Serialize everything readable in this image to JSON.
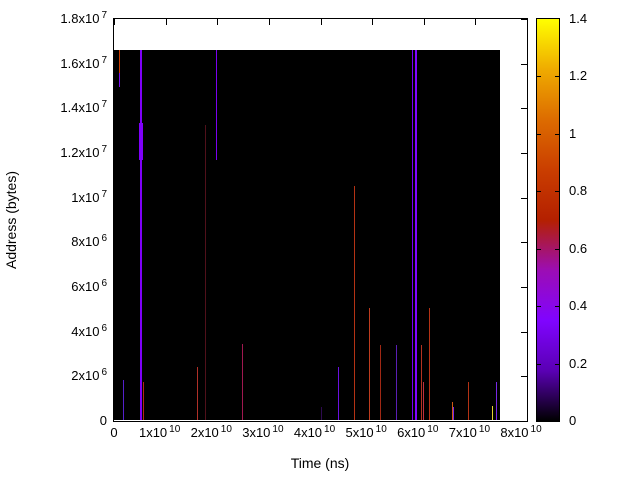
{
  "chart_data": {
    "type": "heatmap",
    "title": "",
    "xlabel": "Time (ns)",
    "ylabel": "Address (bytes)",
    "plot_bg": "#ffffff",
    "grid": false,
    "x_axis": {
      "min": 0,
      "max": 80000000000.0,
      "ticks": [
        {
          "value": 0,
          "mantissa": "0",
          "exp": ""
        },
        {
          "value": 10000000000.0,
          "mantissa": "1x10",
          "exp": "10"
        },
        {
          "value": 20000000000.0,
          "mantissa": "2x10",
          "exp": "10"
        },
        {
          "value": 30000000000.0,
          "mantissa": "3x10",
          "exp": "10"
        },
        {
          "value": 40000000000.0,
          "mantissa": "4x10",
          "exp": "10"
        },
        {
          "value": 50000000000.0,
          "mantissa": "5x10",
          "exp": "10"
        },
        {
          "value": 60000000000.0,
          "mantissa": "6x10",
          "exp": "10"
        },
        {
          "value": 70000000000.0,
          "mantissa": "7x10",
          "exp": "10"
        },
        {
          "value": 80000000000.0,
          "mantissa": "8x10",
          "exp": "10"
        }
      ]
    },
    "y_axis": {
      "min": 0,
      "max": 18000000.0,
      "ticks": [
        {
          "value": 0,
          "mantissa": "0",
          "exp": ""
        },
        {
          "value": 2000000.0,
          "mantissa": "2x10",
          "exp": "6"
        },
        {
          "value": 4000000.0,
          "mantissa": "4x10",
          "exp": "6"
        },
        {
          "value": 6000000.0,
          "mantissa": "6x10",
          "exp": "6"
        },
        {
          "value": 8000000.0,
          "mantissa": "8x10",
          "exp": "6"
        },
        {
          "value": 10000000.0,
          "mantissa": "1x10",
          "exp": "7"
        },
        {
          "value": 12000000.0,
          "mantissa": "1.2x10",
          "exp": "7"
        },
        {
          "value": 14000000.0,
          "mantissa": "1.4x10",
          "exp": "7"
        },
        {
          "value": 16000000.0,
          "mantissa": "1.6x10",
          "exp": "7"
        },
        {
          "value": 18000000.0,
          "mantissa": "1.8x10",
          "exp": "7"
        }
      ]
    },
    "colorbar": {
      "min": 0,
      "max": 1.4,
      "ticks": [
        {
          "value": 0,
          "label": "0"
        },
        {
          "value": 0.2,
          "label": "0.2"
        },
        {
          "value": 0.4,
          "label": "0.4"
        },
        {
          "value": 0.6,
          "label": "0.6"
        },
        {
          "value": 0.8,
          "label": "0.8"
        },
        {
          "value": 1,
          "label": "1"
        },
        {
          "value": 1.2,
          "label": "1.2"
        },
        {
          "value": 1.4,
          "label": "1.4"
        }
      ],
      "gradient_stops": [
        {
          "at": 0,
          "color": "#000000"
        },
        {
          "at": 0.125,
          "color": "#5A00B4"
        },
        {
          "at": 0.25,
          "color": "#8004FF"
        },
        {
          "at": 0.375,
          "color": "#9C0DB4"
        },
        {
          "at": 0.5,
          "color": "#B42000"
        },
        {
          "at": 0.625,
          "color": "#CA3E00"
        },
        {
          "at": 0.75,
          "color": "#DD6C00"
        },
        {
          "at": 0.875,
          "color": "#EFAB00"
        },
        {
          "at": 1,
          "color": "#FFFF00"
        }
      ]
    },
    "data_region": {
      "t_min": 0,
      "t_max": 74700000000.0,
      "addr_min": 0,
      "addr_max": 16600000.0,
      "color": "#000000"
    },
    "spikes": [
      {
        "t": 1100000000.0,
        "a0": 15580000.0,
        "a1": 16600000.0,
        "value": 0.85,
        "color": "#C83C00",
        "w": 1
      },
      {
        "t": 1100000000.0,
        "a0": 14950000.0,
        "a1": 15580000.0,
        "value": 0.35,
        "color": "#7B10F0",
        "w": 1
      },
      {
        "t": 1800000000.0,
        "a0": 0,
        "a1": 1840000.0,
        "value": 0.25,
        "color": "#5520CC",
        "w": 1
      },
      {
        "t": 5200000000.0,
        "a0": 0,
        "a1": 16600000.0,
        "value": 0.35,
        "color": "#7F00FA",
        "w": 2
      },
      {
        "t": 5200000000.0,
        "a0": 11680000.0,
        "a1": 13340000.0,
        "value": 0.35,
        "color": "#7F00FA",
        "w": 4
      },
      {
        "t": 5700000000.0,
        "a0": 0,
        "a1": 1750000.0,
        "value": 0.7,
        "color": "#B42814",
        "w": 1
      },
      {
        "t": 16100000000.0,
        "a0": 0,
        "a1": 2420000.0,
        "value": 0.68,
        "color": "#B03028",
        "w": 1
      },
      {
        "t": 17800000000.0,
        "a0": 0,
        "a1": 13250000.0,
        "value": 0.5,
        "color": "#50101A",
        "w": 1
      },
      {
        "t": 19800000000.0,
        "a0": 11680000.0,
        "a1": 16600000.0,
        "value": 0.35,
        "color": "#7A00F0",
        "w": 1
      },
      {
        "t": 24800000000.0,
        "a0": 0,
        "a1": 3450000.0,
        "value": 0.55,
        "color": "#A01850",
        "w": 1
      },
      {
        "t": 40200000000.0,
        "a0": 0,
        "a1": 630000.0,
        "value": 0.15,
        "color": "#2E0A50",
        "w": 1
      },
      {
        "t": 43500000000.0,
        "a0": 0,
        "a1": 2420000.0,
        "value": 0.3,
        "color": "#6A10E0",
        "w": 1
      },
      {
        "t": 46600000000.0,
        "a0": 0,
        "a1": 10520000.0,
        "value": 0.7,
        "color": "#B43214",
        "w": 1
      },
      {
        "t": 49500000000.0,
        "a0": 0,
        "a1": 5070000.0,
        "value": 0.72,
        "color": "#BE3C1E",
        "w": 1
      },
      {
        "t": 51700000000.0,
        "a0": 0,
        "a1": 3400000.0,
        "value": 0.65,
        "color": "#A02814",
        "w": 1
      },
      {
        "t": 54700000000.0,
        "a0": 0,
        "a1": 3400000.0,
        "value": 0.28,
        "color": "#5A1EB4",
        "w": 1
      },
      {
        "t": 57900000000.0,
        "a0": 0,
        "a1": 16600000.0,
        "value": 0.33,
        "color": "#7800F0",
        "w": 1
      },
      {
        "t": 58500000000.0,
        "a0": 0,
        "a1": 16600000.0,
        "value": 0.35,
        "color": "#8004FF",
        "w": 2
      },
      {
        "t": 59600000000.0,
        "a0": 0,
        "a1": 3400000.0,
        "value": 0.7,
        "color": "#B43220",
        "w": 1
      },
      {
        "t": 60000000000.0,
        "a0": 0,
        "a1": 1750000.0,
        "value": 0.75,
        "color": "#C03040",
        "w": 1
      },
      {
        "t": 61100000000.0,
        "a0": 0,
        "a1": 5070000.0,
        "value": 0.7,
        "color": "#B43214",
        "w": 1
      },
      {
        "t": 65500000000.0,
        "a0": 0,
        "a1": 850000.0,
        "value": 0.9,
        "color": "#D05A14",
        "w": 1
      },
      {
        "t": 65700000000.0,
        "a0": 0,
        "a1": 630000.0,
        "value": 0.35,
        "color": "#7A28E6",
        "w": 1
      },
      {
        "t": 68700000000.0,
        "a0": 0,
        "a1": 1750000.0,
        "value": 0.7,
        "color": "#B43214",
        "w": 1
      },
      {
        "t": 73400000000.0,
        "a0": 0,
        "a1": 670000.0,
        "value": 1.3,
        "color": "#E6D232",
        "w": 1
      },
      {
        "t": 74100000000.0,
        "a0": 0,
        "a1": 1750000.0,
        "value": 0.35,
        "color": "#7828E6",
        "w": 1
      }
    ]
  }
}
